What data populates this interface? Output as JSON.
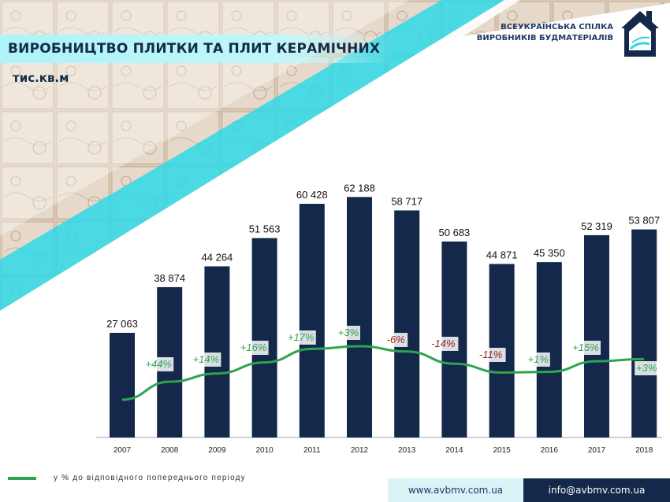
{
  "header": {
    "title": "ВИРОБНИЦТВО ПЛИТКИ ТА ПЛИТ КЕРАМІЧНИХ",
    "unit": "тис.кв.м",
    "org_line1": "ВСЕУКРАЇНСЬКА СПІЛКА",
    "org_line2": "ВИРОБНИКІВ БУДМАТЕРІАЛІВ"
  },
  "colors": {
    "bar": "#13284a",
    "line": "#2ea44f",
    "positive": "#2ea44f",
    "negative": "#9a1f1f",
    "accent": "#2fd8e8"
  },
  "chart_data": {
    "type": "bar",
    "categories": [
      "2007",
      "2008",
      "2009",
      "2010",
      "2011",
      "2012",
      "2013",
      "2014",
      "2015",
      "2016",
      "2017",
      "2018"
    ],
    "values": [
      27063,
      38874,
      44264,
      51563,
      60428,
      62188,
      58717,
      50683,
      44871,
      45350,
      52319,
      53807
    ],
    "value_labels": [
      "27 063",
      "38 874",
      "44 264",
      "51 563",
      "60 428",
      "62 188",
      "58 717",
      "50 683",
      "44 871",
      "45 350",
      "52 319",
      "53 807"
    ],
    "series": [
      {
        "name": "у % до відповідного попереднього періоду",
        "type": "line",
        "x": [
          "2007",
          "2008",
          "2009",
          "2010",
          "2011",
          "2012",
          "2013",
          "2014",
          "2015",
          "2016",
          "2017"
        ],
        "labels": [
          "+44%",
          "+14%",
          "+16%",
          "+17%",
          "+3%",
          "-6%",
          "-14%",
          "-11%",
          "+1%",
          "+15%",
          "+3%"
        ],
        "percent": [
          44,
          14,
          16,
          17,
          3,
          -6,
          -14,
          -11,
          1,
          15,
          3
        ]
      }
    ],
    "ylim": [
      0,
      70000
    ],
    "grid": false,
    "legend": "bottom-left"
  },
  "footer": {
    "legend_label": "у % до відповідного попереднього періоду",
    "website": "www.avbmv.com.ua",
    "email": "info@avbmv.com.ua"
  }
}
